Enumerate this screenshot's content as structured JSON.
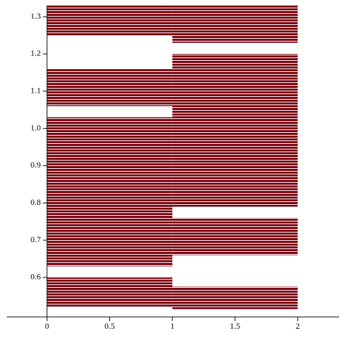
{
  "chart_data": {
    "type": "band",
    "color": "#7a0010",
    "xlim": [
      -0.32,
      2.33
    ],
    "ylim": [
      0.494,
      1.33
    ],
    "xticks": [
      0,
      0.5,
      1,
      1.5,
      2
    ],
    "yticks": [
      0.6,
      0.7,
      0.8,
      0.9,
      {
        "value": 1,
        "label": "1.0"
      },
      1.1,
      1.2,
      1.3
    ],
    "bands": [
      {
        "x": [
          0,
          1
        ],
        "y": [
          1.25,
          1.33
        ]
      },
      {
        "x": [
          0,
          1
        ],
        "y": [
          1.06,
          1.16
        ]
      },
      {
        "x": [
          0,
          1
        ],
        "y": [
          0.63,
          1.03
        ]
      },
      {
        "x": [
          0,
          1
        ],
        "y": [
          0.52,
          0.6
        ]
      },
      {
        "x": [
          1,
          2
        ],
        "y": [
          1.23,
          1.33
        ]
      },
      {
        "x": [
          1,
          2
        ],
        "y": [
          0.79,
          1.2
        ]
      },
      {
        "x": [
          1,
          2
        ],
        "y": [
          0.66,
          0.76
        ]
      },
      {
        "x": [
          1,
          2
        ],
        "y": [
          0.515,
          0.575
        ]
      }
    ]
  }
}
